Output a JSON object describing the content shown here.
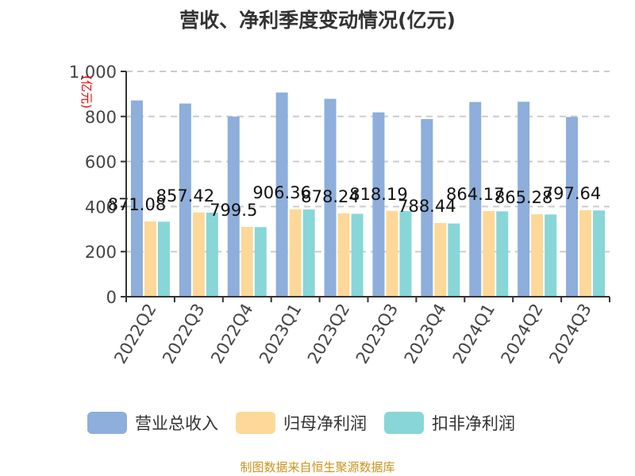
{
  "chart_data": {
    "type": "bar",
    "title": "营收、净利季度变动情况(亿元)",
    "ylabel": "(亿元)",
    "ylim": [
      0,
      1000
    ],
    "yticks": [
      "0",
      "200",
      "400",
      "600",
      "800",
      "1,000"
    ],
    "grid": true,
    "legend_position": "bottom",
    "categories": [
      "2022Q2",
      "2022Q3",
      "2022Q4",
      "2023Q1",
      "2023Q2",
      "2023Q3",
      "2023Q4",
      "2024Q1",
      "2024Q2",
      "2024Q3"
    ],
    "series": [
      {
        "name": "营业总收入",
        "color": "#8eaedb",
        "values": [
          871.08,
          857.42,
          799.5,
          906.36,
          878.24,
          818.19,
          788.44,
          864.17,
          865.28,
          797.64
        ],
        "labels": [
          "871.08",
          "857.42",
          "799.5",
          "906.36",
          "878.24",
          "818.19",
          "788.44",
          "864.17",
          "865.28",
          "797.64"
        ]
      },
      {
        "name": "归母净利润",
        "color": "#fdd898",
        "values": [
          334,
          374,
          310,
          388,
          370,
          381,
          327,
          380,
          366,
          384
        ]
      },
      {
        "name": "扣非净利润",
        "color": "#88d6d8",
        "values": [
          333,
          373,
          309,
          387,
          368,
          380,
          325,
          379,
          365,
          383
        ]
      }
    ]
  },
  "footer": "制图数据来自恒生聚源数据库"
}
